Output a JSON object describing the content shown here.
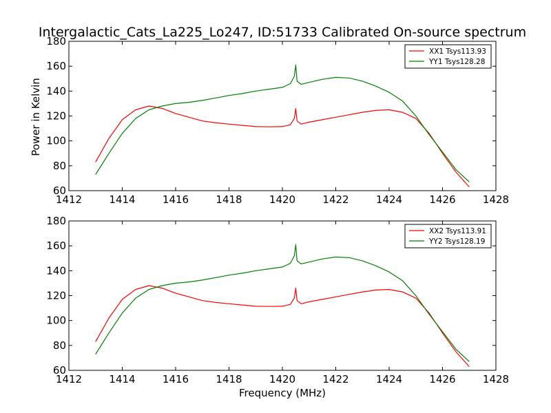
{
  "title": "Intergalactic_Cats_La225_Lo247, ID:51733 Calibrated On-source spectrum",
  "chart_data": {
    "type": "line",
    "title": "Intergalactic_Cats_La225_Lo247, ID:51733 Calibrated On-source spectrum",
    "xlabel": "Frequency (MHz)",
    "ylabel": "Power in Kelvin",
    "xlim": [
      1412,
      1428
    ],
    "ylim": [
      60,
      180
    ],
    "x_ticks": [
      "1412",
      "1414",
      "1416",
      "1418",
      "1420",
      "1422",
      "1424",
      "1426",
      "1428"
    ],
    "y_ticks": [
      "60",
      "80",
      "100",
      "120",
      "140",
      "160",
      "180"
    ],
    "panels": [
      {
        "name": "top",
        "legend_position": "top-right",
        "series": [
          {
            "name": "XX1 Tsys113.93",
            "color": "#ff0000",
            "x": [
              1413.0,
              1413.5,
              1414.0,
              1414.5,
              1415.0,
              1415.5,
              1416.0,
              1416.5,
              1417.0,
              1417.5,
              1418.0,
              1418.5,
              1419.0,
              1419.5,
              1420.0,
              1420.3,
              1420.45,
              1420.5,
              1420.55,
              1420.7,
              1421.0,
              1421.5,
              1422.0,
              1422.5,
              1423.0,
              1423.5,
              1424.0,
              1424.5,
              1425.0,
              1425.5,
              1426.0,
              1426.5,
              1427.0
            ],
            "values": [
              83,
              102,
              117,
              125,
              128,
              126,
              122,
              119,
              116,
              114.5,
              113.5,
              112.5,
              111.5,
              111.3,
              111.5,
              113,
              118,
              126,
              116,
              113.5,
              115,
              117,
              119,
              121,
              123,
              124.5,
              125,
              123,
              118,
              106,
              90,
              75,
              63
            ]
          },
          {
            "name": "YY1 Tsys128.28",
            "color": "#008000",
            "x": [
              1413.0,
              1413.5,
              1414.0,
              1414.5,
              1415.0,
              1415.5,
              1416.0,
              1416.5,
              1417.0,
              1417.5,
              1418.0,
              1418.5,
              1419.0,
              1419.5,
              1420.0,
              1420.3,
              1420.45,
              1420.5,
              1420.55,
              1420.7,
              1421.0,
              1421.5,
              1422.0,
              1422.5,
              1423.0,
              1423.5,
              1424.0,
              1424.5,
              1425.0,
              1425.5,
              1426.0,
              1426.5,
              1427.0
            ],
            "values": [
              73,
              90,
              106,
              118,
              125,
              128,
              130,
              131,
              132.5,
              134.5,
              136.5,
              138,
              140,
              141.5,
              143,
              146,
              152,
              161,
              148,
              145.5,
              147,
              149.5,
              151,
              150.5,
              148,
              144,
              139,
              132,
              120,
              105,
              91,
              77,
              67
            ]
          }
        ]
      },
      {
        "name": "bottom",
        "legend_position": "top-right",
        "series": [
          {
            "name": "XX2 Tsys113.91",
            "color": "#ff0000",
            "x": [
              1413.0,
              1413.5,
              1414.0,
              1414.5,
              1415.0,
              1415.5,
              1416.0,
              1416.5,
              1417.0,
              1417.5,
              1418.0,
              1418.5,
              1419.0,
              1419.5,
              1420.0,
              1420.3,
              1420.45,
              1420.5,
              1420.55,
              1420.7,
              1421.0,
              1421.5,
              1422.0,
              1422.5,
              1423.0,
              1423.5,
              1424.0,
              1424.5,
              1425.0,
              1425.5,
              1426.0,
              1426.5,
              1427.0
            ],
            "values": [
              83,
              102,
              117,
              125,
              128,
              126,
              122,
              119,
              116,
              114.5,
              113.5,
              112.5,
              111.5,
              111.3,
              111.5,
              113,
              118,
              126,
              116,
              113.5,
              115,
              117,
              119,
              121,
              123,
              124.5,
              125,
              123,
              118,
              106,
              90,
              75,
              63
            ]
          },
          {
            "name": "YY2 Tsys128.19",
            "color": "#008000",
            "x": [
              1413.0,
              1413.5,
              1414.0,
              1414.5,
              1415.0,
              1415.5,
              1416.0,
              1416.5,
              1417.0,
              1417.5,
              1418.0,
              1418.5,
              1419.0,
              1419.5,
              1420.0,
              1420.3,
              1420.45,
              1420.5,
              1420.55,
              1420.7,
              1421.0,
              1421.5,
              1422.0,
              1422.5,
              1423.0,
              1423.5,
              1424.0,
              1424.5,
              1425.0,
              1425.5,
              1426.0,
              1426.5,
              1427.0
            ],
            "values": [
              73,
              90,
              106,
              118,
              125,
              128,
              130,
              131,
              132.5,
              134.5,
              136.5,
              138,
              140,
              141.5,
              143,
              146,
              152,
              161,
              148,
              145.5,
              147,
              149.5,
              151,
              150.5,
              148,
              144,
              139,
              132,
              120,
              105,
              91,
              77,
              67
            ]
          }
        ]
      }
    ]
  }
}
